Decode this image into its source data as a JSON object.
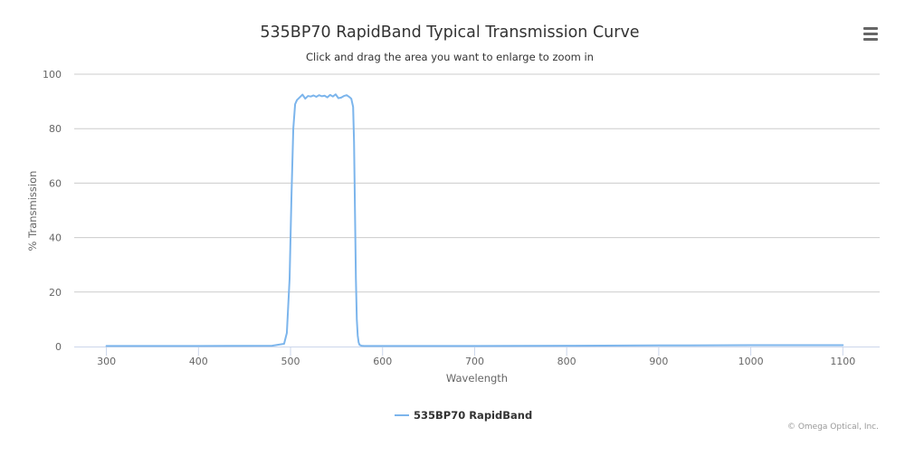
{
  "chart": {
    "title": "535BP70 RapidBand Typical Transmission Curve",
    "subtitle": "Click and drag the area you want to enlarge to zoom in",
    "credits": "© Omega Optical, Inc.",
    "menu_icon": "hamburger-menu-icon"
  },
  "chart_data": {
    "type": "line",
    "title": "535BP70 RapidBand Typical Transmission Curve",
    "subtitle": "Click and drag the area you want to enlarge to zoom in",
    "xlabel": "Wavelength",
    "ylabel": "% Transmission",
    "xlim": [
      265,
      1140
    ],
    "ylim": [
      0,
      100
    ],
    "xticks": [
      300,
      400,
      500,
      600,
      700,
      800,
      900,
      1000,
      1100
    ],
    "yticks": [
      0,
      20,
      40,
      60,
      80,
      100
    ],
    "grid": "horizontal",
    "legend": "bottom-center",
    "series": [
      {
        "name": "535BP70 RapidBand",
        "color": "#7cb5ec",
        "x": [
          300,
          400,
          480,
          493,
          496,
          499,
          501,
          503,
          505,
          507,
          510,
          513,
          516,
          519,
          522,
          525,
          528,
          531,
          534,
          537,
          540,
          543,
          546,
          549,
          552,
          555,
          558,
          561,
          564,
          566,
          568,
          569,
          570,
          571,
          572,
          573,
          574,
          575,
          577,
          580,
          600,
          700,
          800,
          900,
          1000,
          1050,
          1100
        ],
        "y": [
          0.2,
          0.2,
          0.3,
          1.0,
          5.0,
          25.0,
          55.0,
          80.0,
          89.0,
          90.5,
          91.5,
          92.5,
          91.0,
          92.0,
          91.8,
          92.2,
          91.7,
          92.3,
          91.9,
          92.1,
          91.5,
          92.4,
          91.8,
          92.6,
          91.2,
          91.4,
          92.0,
          92.3,
          91.6,
          91.0,
          88.0,
          75.0,
          50.0,
          25.0,
          10.0,
          4.0,
          1.5,
          0.6,
          0.3,
          0.2,
          0.2,
          0.2,
          0.3,
          0.4,
          0.5,
          0.5,
          0.5
        ]
      }
    ]
  }
}
